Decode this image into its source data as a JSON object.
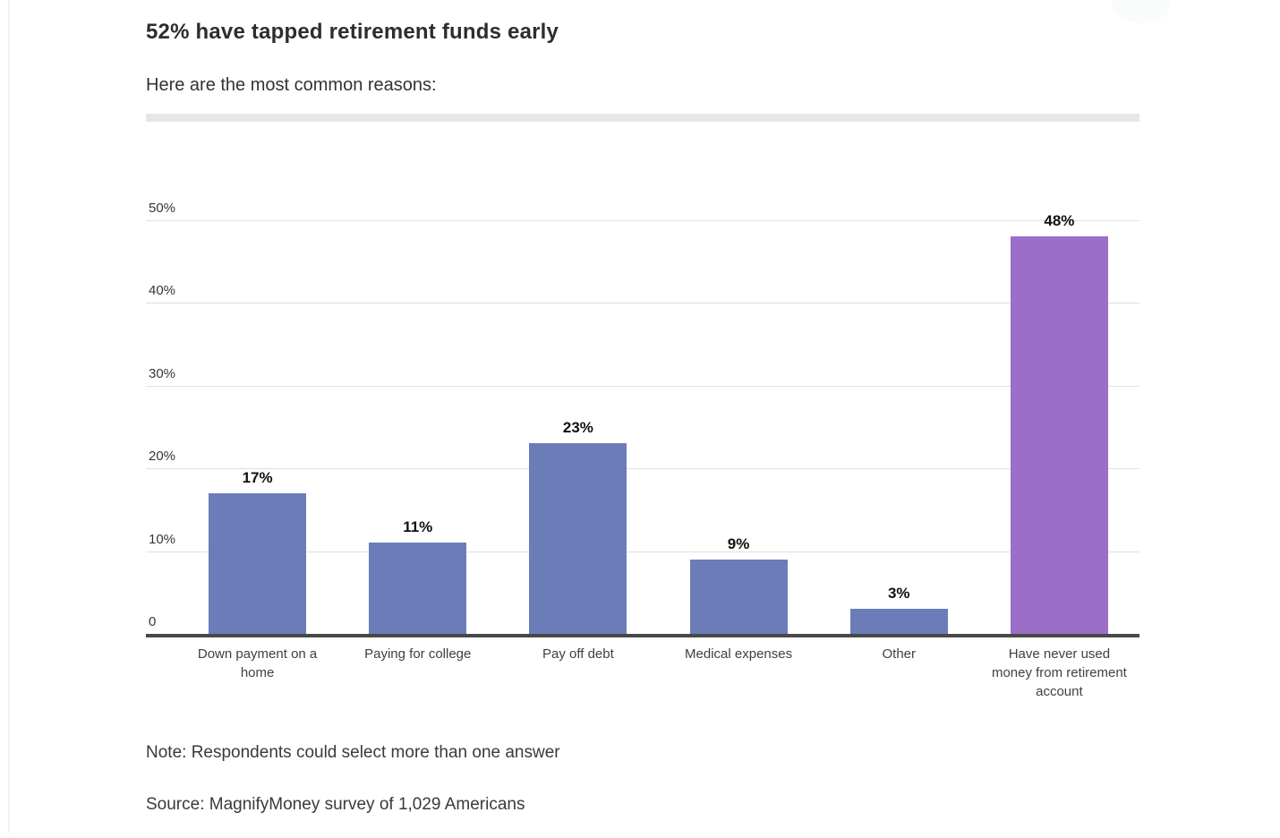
{
  "page": {
    "title": "52% have tapped retirement funds early",
    "subtitle": "Here are the most common reasons:",
    "note": "Note: Respondents could select more than one answer",
    "source": "Source: MagnifyMoney survey of 1,029 Americans"
  },
  "colors": {
    "bar": "#6b7cb9",
    "bar_highlight": "#9b6fc8",
    "gridline": "#e0e0e0",
    "baseline": "#484848",
    "divider": "#e7e7e7"
  },
  "chart_data": {
    "type": "bar",
    "title": "52% have tapped retirement funds early",
    "subtitle": "Here are the most common reasons:",
    "categories": [
      "Down payment on a home",
      "Paying for college",
      "Pay off debt",
      "Medical expenses",
      "Other",
      "Have never used money from retirement account"
    ],
    "categories_wrapped": [
      "Down payment on a\nhome",
      "Paying for college",
      "Pay off debt",
      "Medical expenses",
      "Other",
      "Have never used\nmoney from retirement\naccount"
    ],
    "values": [
      17,
      11,
      23,
      9,
      3,
      48
    ],
    "value_labels": [
      "17%",
      "11%",
      "23%",
      "9%",
      "3%",
      "48%"
    ],
    "highlight_index": 5,
    "xlabel": "",
    "ylabel": "",
    "ylim": [
      0,
      50
    ],
    "yticks": [
      0,
      10,
      20,
      30,
      40,
      50
    ],
    "ytick_labels": [
      "0",
      "10%",
      "20%",
      "30%",
      "40%",
      "50%"
    ],
    "grid": true,
    "legend": "none",
    "note": "Note: Respondents could select more than one answer",
    "source": "Source: MagnifyMoney survey of 1,029 Americans"
  }
}
